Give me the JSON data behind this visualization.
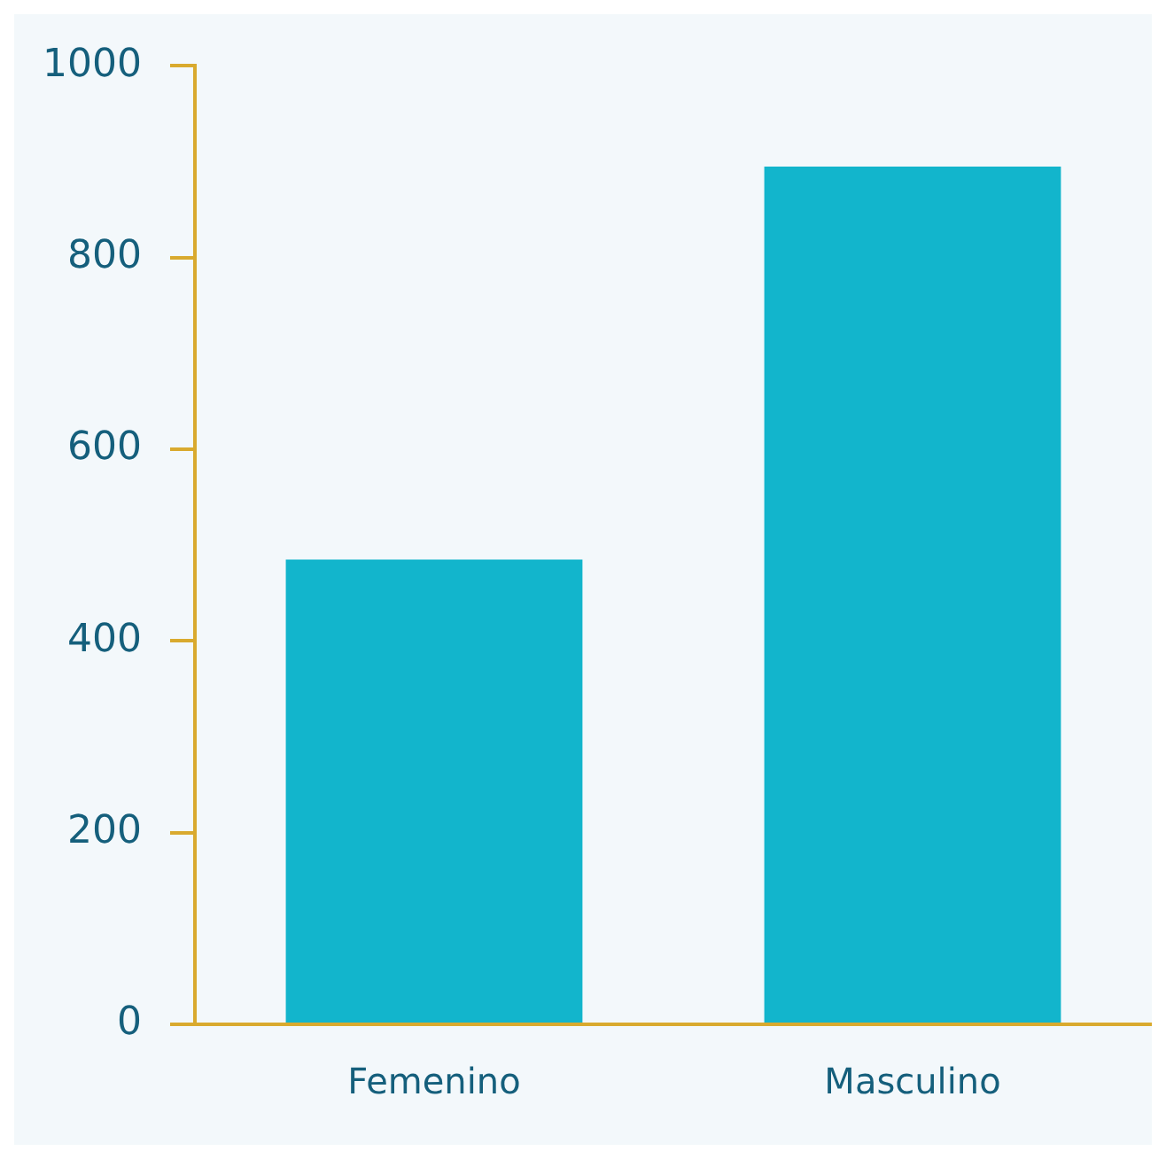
{
  "chart_data": {
    "type": "bar",
    "categories": [
      "Femenino",
      "Masculino"
    ],
    "values": [
      485,
      895
    ],
    "color": "#12b5cc",
    "ylim": [
      0,
      1000
    ],
    "yticks": [
      0,
      200,
      400,
      600,
      800,
      1000
    ],
    "grid": false,
    "legend": false
  }
}
